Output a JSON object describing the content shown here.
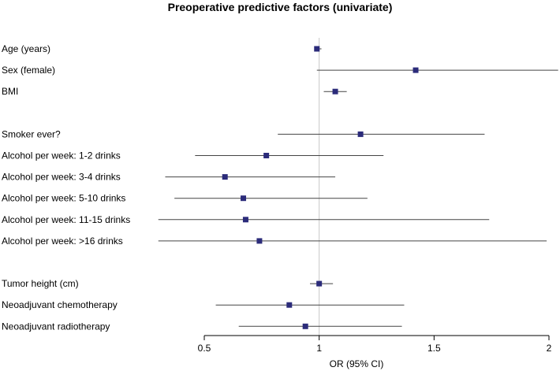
{
  "chart_data": {
    "type": "forest",
    "title": "Preoperative predictive factors (univariate)",
    "xlabel": "OR (95% CI)",
    "xlim": [
      0.5,
      2.0
    ],
    "xticks": [
      0.5,
      1,
      1.5,
      2
    ],
    "tick_labels": [
      "0.5",
      "1",
      "1.5",
      "2"
    ],
    "reference_line": 1,
    "grid": false,
    "colors": {
      "point": "#2b2b7a",
      "ci_line": "#444444",
      "ref_line": "#c8c8c8",
      "axis": "#000000"
    },
    "groups": [
      {
        "rows": [
          {
            "label": "Age (years)",
            "or": 0.99,
            "lower": 0.98,
            "upper": 1.01
          },
          {
            "label": "Sex (female)",
            "or": 1.42,
            "lower": 0.99,
            "upper": 2.04
          },
          {
            "label": "BMI",
            "or": 1.07,
            "lower": 1.02,
            "upper": 1.12
          }
        ]
      },
      {
        "rows": [
          {
            "label": "Smoker ever?",
            "or": 1.18,
            "lower": 0.82,
            "upper": 1.72
          },
          {
            "label": "Alcohol per week: 1-2 drinks",
            "or": 0.77,
            "lower": 0.46,
            "upper": 1.28
          },
          {
            "label": "Alcohol per week: 3-4 drinks",
            "or": 0.59,
            "lower": 0.33,
            "upper": 1.07
          },
          {
            "label": "Alcohol per week: 5-10 drinks",
            "or": 0.67,
            "lower": 0.37,
            "upper": 1.21
          },
          {
            "label": "Alcohol per week: 11-15 drinks",
            "or": 0.68,
            "lower": 0.26,
            "upper": 1.74
          },
          {
            "label": "Alcohol per week: >16 drinks",
            "or": 0.74,
            "lower": 0.27,
            "upper": 1.99
          }
        ]
      },
      {
        "rows": [
          {
            "label": "Tumor height (cm)",
            "or": 1.0,
            "lower": 0.96,
            "upper": 1.06
          },
          {
            "label": "Neoadjuvant chemotherapy",
            "or": 0.87,
            "lower": 0.55,
            "upper": 1.37
          },
          {
            "label": "Neoadjuvant radiotherapy",
            "or": 0.94,
            "lower": 0.65,
            "upper": 1.36
          }
        ]
      }
    ]
  }
}
